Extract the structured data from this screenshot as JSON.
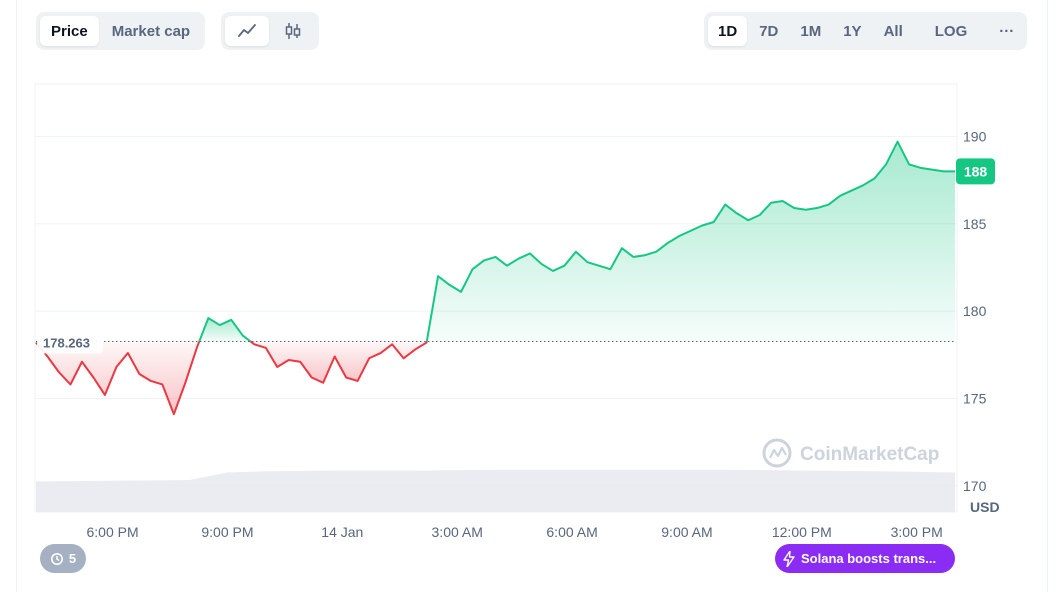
{
  "toolbar": {
    "metric_tabs": [
      {
        "label": "Price",
        "active": true
      },
      {
        "label": "Market cap",
        "active": false
      }
    ],
    "chart_style_icons": [
      "line-chart-icon",
      "candlestick-icon"
    ],
    "range_tabs": [
      {
        "label": "1D",
        "active": true
      },
      {
        "label": "7D",
        "active": false
      },
      {
        "label": "1M",
        "active": false
      },
      {
        "label": "1Y",
        "active": false
      },
      {
        "label": "All",
        "active": false
      }
    ],
    "log_label": "LOG",
    "more_label": "···"
  },
  "colors": {
    "up": "#16c784",
    "down": "#ea3943",
    "badge": "#16c784",
    "news": "#8b2cf5"
  },
  "watermark": "CoinMarketCap",
  "history_badge": {
    "count": "5"
  },
  "news_pill": {
    "label": "Solana boosts trans..."
  },
  "chart_data": {
    "type": "area",
    "title": "",
    "xlabel": "",
    "ylabel": "",
    "currency_label": "USD",
    "ylim": [
      168.5,
      193
    ],
    "yticks": [
      170,
      175,
      180,
      185,
      190
    ],
    "x_tick_labels": [
      "6:00 PM",
      "9:00 PM",
      "14 Jan",
      "3:00 AM",
      "6:00 AM",
      "9:00 AM",
      "12:00 PM",
      "3:00 PM"
    ],
    "x_tick_hours": [
      2,
      5,
      8,
      11,
      14,
      17,
      20,
      23
    ],
    "x_range_hours": [
      0,
      24
    ],
    "baseline": {
      "value": 178.263,
      "label": "178.263"
    },
    "current_price": {
      "value": 188,
      "label": "188"
    },
    "series": [
      {
        "x": [
          0,
          0.3,
          0.6,
          0.9,
          1.2,
          1.5,
          1.8,
          2.1,
          2.4,
          2.7,
          3.0,
          3.3,
          3.6,
          3.9,
          4.2,
          4.5,
          4.8,
          5.1,
          5.4,
          5.7,
          6.0,
          6.3,
          6.6,
          6.9,
          7.2,
          7.5,
          7.8,
          8.1,
          8.4,
          8.7,
          9.0,
          9.3,
          9.6,
          9.9,
          10.2,
          10.5,
          10.8,
          11.1,
          11.4,
          11.7,
          12.0,
          12.3,
          12.6,
          12.9,
          13.2,
          13.5,
          13.8,
          14.1,
          14.4,
          14.7,
          15.0,
          15.3,
          15.6,
          15.9,
          16.2,
          16.5,
          16.8,
          17.1,
          17.4,
          17.7,
          18.0,
          18.3,
          18.6,
          18.9,
          19.2,
          19.5,
          19.8,
          20.1,
          20.4,
          20.7,
          21.0,
          21.3,
          21.6,
          21.9,
          22.2,
          22.5,
          22.8,
          23.1,
          23.4,
          23.7,
          24.0
        ],
        "y": [
          178.2,
          177.4,
          176.5,
          175.8,
          177.1,
          176.2,
          175.2,
          176.8,
          177.6,
          176.4,
          176.0,
          175.8,
          174.1,
          175.9,
          177.9,
          179.6,
          179.2,
          179.5,
          178.6,
          178.1,
          177.9,
          176.8,
          177.2,
          177.1,
          176.2,
          175.9,
          177.4,
          176.2,
          176.0,
          177.3,
          177.6,
          178.1,
          177.3,
          177.8,
          178.2,
          182.0,
          181.5,
          181.1,
          182.4,
          182.9,
          183.1,
          182.6,
          183.0,
          183.3,
          182.7,
          182.3,
          182.6,
          183.4,
          182.8,
          182.6,
          182.4,
          183.6,
          183.1,
          183.2,
          183.4,
          183.9,
          184.3,
          184.6,
          184.9,
          185.1,
          186.1,
          185.6,
          185.2,
          185.5,
          186.2,
          186.3,
          185.9,
          185.8,
          185.9,
          186.1,
          186.6,
          186.9,
          187.2,
          187.6,
          188.4,
          189.7,
          188.4,
          188.2,
          188.1,
          188.0,
          188.0
        ]
      }
    ],
    "volume": {
      "x": [
        0,
        2,
        4,
        5,
        6,
        8,
        10,
        12,
        14,
        16,
        18,
        20,
        22,
        24
      ],
      "y": [
        0.45,
        0.46,
        0.47,
        0.58,
        0.6,
        0.61,
        0.61,
        0.62,
        0.62,
        0.62,
        0.62,
        0.61,
        0.6,
        0.58
      ]
    }
  }
}
